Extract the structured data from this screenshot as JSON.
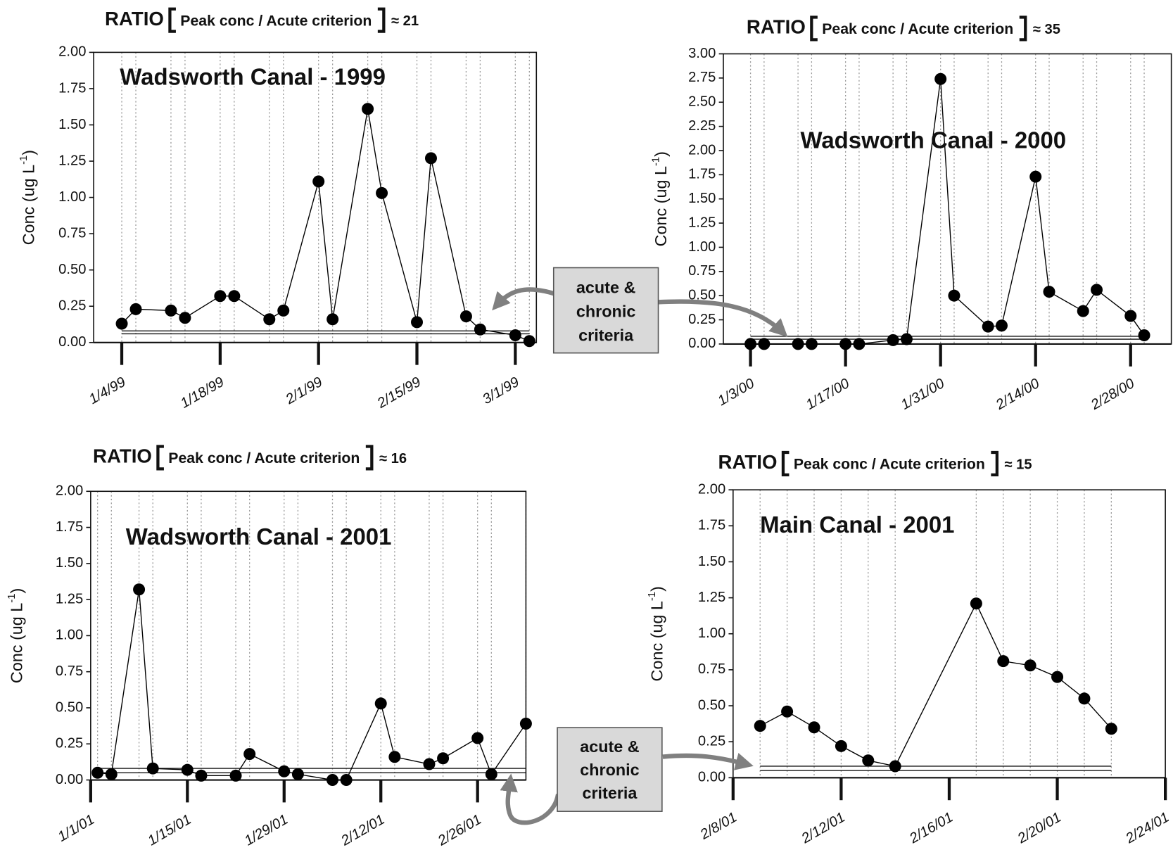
{
  "chart_data": [
    {
      "type": "line",
      "title": "RATIO",
      "subtitle": "Peak conc / Acute criterion",
      "ratio": "≈ 21",
      "annotation": "Wadsworth Canal - 1999",
      "ylabel": [
        "Conc (ug L",
        "-1",
        ")"
      ],
      "x": [
        "1/4/99",
        "1/6/99",
        "1/11/99",
        "1/13/99",
        "1/18/99",
        "1/20/99",
        "1/25/99",
        "1/27/99",
        "2/1/99",
        "2/3/99",
        "2/8/99",
        "2/10/99",
        "2/15/99",
        "2/17/99",
        "2/22/99",
        "2/24/99",
        "3/1/99",
        "3/3/99"
      ],
      "values": [
        0.13,
        0.23,
        0.22,
        0.17,
        0.32,
        0.32,
        0.16,
        0.22,
        1.11,
        0.16,
        1.61,
        1.03,
        0.14,
        1.27,
        0.18,
        0.09,
        0.05,
        0.01
      ],
      "reference_lines": [
        0.08,
        0.06
      ],
      "xlim": [
        "12/31/98",
        "3/4/99"
      ],
      "xticks": [
        "1/4/99",
        "1/18/99",
        "2/1/99",
        "2/15/99",
        "3/1/99"
      ],
      "ylim": [
        0,
        2
      ],
      "yticks": [
        {
          "value": 0,
          "label": "0.00"
        },
        {
          "value": 0.25,
          "label": "0.25"
        },
        {
          "value": 0.5,
          "label": "0.50"
        },
        {
          "value": 0.75,
          "label": "0.75"
        },
        {
          "value": 1,
          "label": "1.00"
        },
        {
          "value": 1.25,
          "label": "1.25"
        },
        {
          "value": 1.5,
          "label": "1.50"
        },
        {
          "value": 1.75,
          "label": "1.75"
        },
        {
          "value": 2,
          "label": "2.00"
        }
      ],
      "color": "#000000",
      "grid": true
    },
    {
      "type": "line",
      "title": "RATIO",
      "subtitle": "Peak conc / Acute criterion",
      "ratio": "≈ 35",
      "annotation": "Wadsworth Canal - 2000",
      "ylabel": [
        "Conc (ug L",
        "-1",
        ")"
      ],
      "x": [
        "1/3/00",
        "1/5/00",
        "1/10/00",
        "1/12/00",
        "1/17/00",
        "1/19/00",
        "1/24/00",
        "1/26/00",
        "1/31/00",
        "2/2/00",
        "2/7/00",
        "2/9/00",
        "2/14/00",
        "2/16/00",
        "2/21/00",
        "2/23/00",
        "2/28/00",
        "3/1/00"
      ],
      "values": [
        0,
        0,
        0,
        0,
        0,
        0,
        0.04,
        0.05,
        2.74,
        0.5,
        0.18,
        0.19,
        1.73,
        0.54,
        0.34,
        0.56,
        0.29,
        0.09
      ],
      "reference_lines": [
        0.08,
        0.05
      ],
      "xlim": [
        "12/30/99",
        "3/5/00"
      ],
      "xticks": [
        "1/3/00",
        "1/17/00",
        "1/31/00",
        "2/14/00",
        "2/28/00"
      ],
      "ylim": [
        0,
        3
      ],
      "yticks": [
        {
          "value": 0,
          "label": "0.00"
        },
        {
          "value": 0.25,
          "label": "0.25"
        },
        {
          "value": 0.5,
          "label": "0.50"
        },
        {
          "value": 0.75,
          "label": "0.75"
        },
        {
          "value": 1,
          "label": "1.00"
        },
        {
          "value": 1.25,
          "label": "1.25"
        },
        {
          "value": 1.5,
          "label": "1.50"
        },
        {
          "value": 1.75,
          "label": "1.75"
        },
        {
          "value": 2,
          "label": "2.00"
        },
        {
          "value": 2.25,
          "label": "2.25"
        },
        {
          "value": 2.5,
          "label": "2.50"
        },
        {
          "value": 2.75,
          "label": "2.75"
        },
        {
          "value": 3,
          "label": "3.00"
        }
      ],
      "color": "#000000",
      "grid": true
    },
    {
      "type": "line",
      "title": "RATIO",
      "subtitle": "Peak conc / Acute criterion",
      "ratio": "≈ 16",
      "annotation": "Wadsworth Canal - 2001",
      "ylabel": [
        "Conc (ug L",
        "-1",
        ")"
      ],
      "x": [
        "1/2/01",
        "1/4/01",
        "1/8/01",
        "1/10/01",
        "1/15/01",
        "1/17/01",
        "1/22/01",
        "1/24/01",
        "1/29/01",
        "1/31/01",
        "2/5/01",
        "2/7/01",
        "2/12/01",
        "2/14/01",
        "2/19/01",
        "2/21/01",
        "2/26/01",
        "2/28/01",
        "3/5/01"
      ],
      "values": [
        0.05,
        0.04,
        1.32,
        0.08,
        0.07,
        0.03,
        0.03,
        0.18,
        0.06,
        0.04,
        0,
        0,
        0.53,
        0.16,
        0.11,
        0.15,
        0.29,
        0.04,
        0.39
      ],
      "reference_lines": [
        0.08,
        0.05
      ],
      "xlim": [
        "1/1/01",
        "3/5/01"
      ],
      "xticks": [
        "1/1/01",
        "1/15/01",
        "1/29/01",
        "2/12/01",
        "2/26/01"
      ],
      "ylim": [
        0,
        2
      ],
      "yticks": [
        {
          "value": 0,
          "label": "0.00"
        },
        {
          "value": 0.25,
          "label": "0.25"
        },
        {
          "value": 0.5,
          "label": "0.50"
        },
        {
          "value": 0.75,
          "label": "0.75"
        },
        {
          "value": 1,
          "label": "1.00"
        },
        {
          "value": 1.25,
          "label": "1.25"
        },
        {
          "value": 1.5,
          "label": "1.50"
        },
        {
          "value": 1.75,
          "label": "1.75"
        },
        {
          "value": 2,
          "label": "2.00"
        }
      ],
      "color": "#000000",
      "grid": true
    },
    {
      "type": "line",
      "title": "RATIO",
      "subtitle": "Peak conc / Acute criterion",
      "ratio": "≈ 15",
      "annotation": "Main Canal - 2001",
      "ylabel": [
        "Conc (ug L",
        "-1",
        ")"
      ],
      "x": [
        "2/9/01",
        "2/10/01",
        "2/11/01",
        "2/12/01",
        "2/13/01",
        "2/14/01",
        "2/17/01",
        "2/18/01",
        "2/19/01",
        "2/20/01",
        "2/21/01",
        "2/22/01"
      ],
      "values": [
        0.36,
        0.46,
        0.35,
        0.22,
        0.12,
        0.08,
        1.21,
        0.81,
        0.78,
        0.7,
        0.55,
        0.34
      ],
      "reference_lines": [
        0.08,
        0.05
      ],
      "xlim": [
        "2/8/01",
        "2/24/01"
      ],
      "xticks": [
        "2/8/01",
        "2/12/01",
        "2/16/01",
        "2/20/01",
        "2/24/01"
      ],
      "ylim": [
        0,
        2
      ],
      "yticks": [
        {
          "value": 0,
          "label": "0.00"
        },
        {
          "value": 0.25,
          "label": "0.25"
        },
        {
          "value": 0.5,
          "label": "0.50"
        },
        {
          "value": 0.75,
          "label": "0.75"
        },
        {
          "value": 1,
          "label": "1.00"
        },
        {
          "value": 1.25,
          "label": "1.25"
        },
        {
          "value": 1.5,
          "label": "1.50"
        },
        {
          "value": 1.75,
          "label": "1.75"
        },
        {
          "value": 2,
          "label": "2.00"
        }
      ],
      "color": "#000000",
      "grid": true
    }
  ],
  "callouts": [
    [
      "acute &",
      "chronic",
      "criteria"
    ],
    [
      "acute &",
      "chronic",
      "criteria"
    ]
  ]
}
